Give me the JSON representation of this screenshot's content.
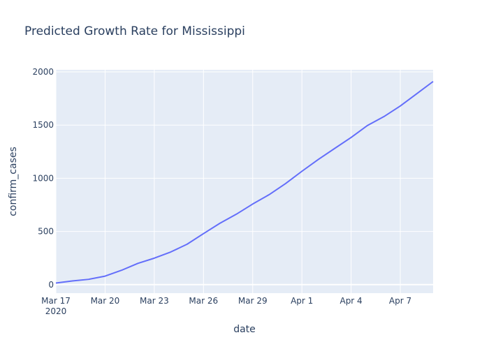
{
  "chart_data": {
    "type": "line",
    "title": "Predicted Growth Rate for Mississippi",
    "xlabel": "date",
    "ylabel": "confirm_cases",
    "grid": true,
    "ylim": [
      -80,
      2020
    ],
    "yticks": [
      0,
      500,
      1000,
      1500,
      2000
    ],
    "ytick_labels": [
      "0",
      "500",
      "1000",
      "1500",
      "2000"
    ],
    "xticks": [
      {
        "date": "2020-03-17",
        "label": "Mar 17",
        "sublabel": "2020"
      },
      {
        "date": "2020-03-20",
        "label": "Mar 20"
      },
      {
        "date": "2020-03-23",
        "label": "Mar 23"
      },
      {
        "date": "2020-03-26",
        "label": "Mar 26"
      },
      {
        "date": "2020-03-29",
        "label": "Mar 29"
      },
      {
        "date": "2020-04-01",
        "label": "Apr 1"
      },
      {
        "date": "2020-04-04",
        "label": "Apr 4"
      },
      {
        "date": "2020-04-07",
        "label": "Apr 7"
      }
    ],
    "xlim": [
      "2020-03-17",
      "2020-04-09"
    ],
    "series": [
      {
        "color": "#636efa",
        "x": [
          "2020-03-17",
          "2020-03-18",
          "2020-03-19",
          "2020-03-20",
          "2020-03-21",
          "2020-03-22",
          "2020-03-23",
          "2020-03-24",
          "2020-03-25",
          "2020-03-26",
          "2020-03-27",
          "2020-03-28",
          "2020-03-29",
          "2020-03-30",
          "2020-03-31",
          "2020-04-01",
          "2020-04-02",
          "2020-04-03",
          "2020-04-04",
          "2020-04-05",
          "2020-04-06",
          "2020-04-07",
          "2020-04-08",
          "2020-04-09"
        ],
        "y": [
          15,
          35,
          50,
          80,
          135,
          200,
          249,
          307,
          380,
          480,
          577,
          662,
          758,
          846,
          950,
          1066,
          1177,
          1281,
          1384,
          1497,
          1580,
          1680,
          1795,
          1910
        ]
      }
    ]
  }
}
